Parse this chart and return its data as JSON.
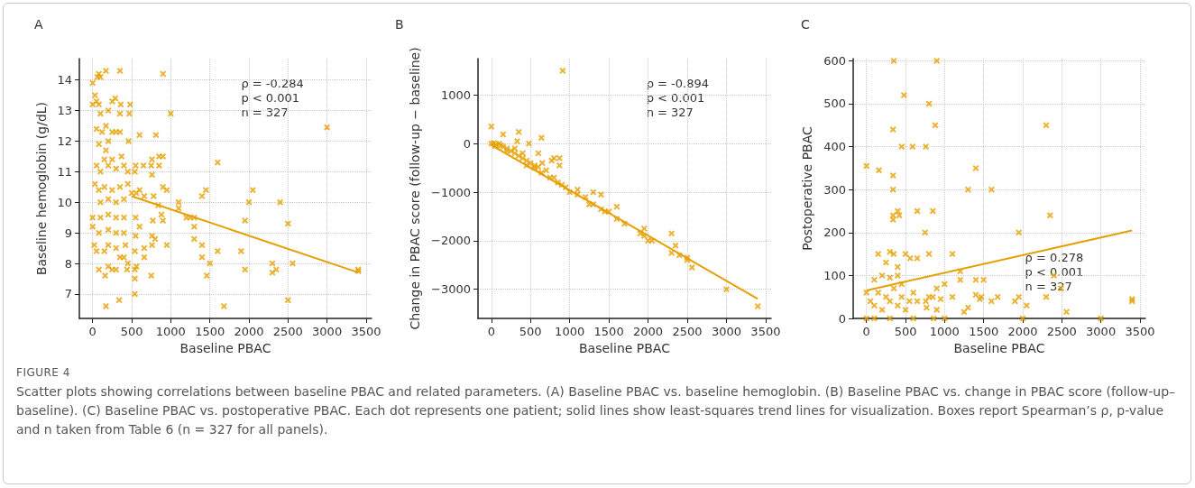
{
  "chart_data": [
    {
      "type": "scatter",
      "title": "A",
      "xlabel": "Baseline PBAC",
      "ylabel": "Baseline hemoglobin (g/dL)",
      "annotations": [
        "ρ = -0.284\np < 0.001\nn = 327",
        "FIGURE 4",
        "Scatter plots showing correlations between baseline PBAC and related parameters. (A) Baseline PBAC vs. baseline hemoglobin. (B) Baseline PBAC vs. change in PBAC score (follow-up–baseline). (C) Baseline PBAC vs. postoperative PBAC. Each dot represents one patient; solid lines show least-squares trend lines for visualization. Boxes report Spearman’s ρ, p-value and n taken from Table 6 (n = 327 for all panels)."
      ],
      "xlim": [
        -170,
        3570
      ],
      "xticks": [
        0,
        500,
        1000,
        1500,
        2000,
        2500,
        3000,
        3500
      ],
      "ylim": [
        6.2,
        14.7
      ],
      "yticks": [
        7,
        8,
        9,
        10,
        11,
        12,
        13,
        14
      ],
      "grid": true,
      "series": [
        {
          "color": "#e69f00",
          "marker": "cross",
          "x": [
            0,
            30,
            60,
            80,
            100,
            170,
            350,
            900,
            0,
            50,
            80,
            100,
            200,
            250,
            290,
            350,
            360,
            480,
            470,
            1000,
            50,
            120,
            170,
            200,
            250,
            300,
            350,
            460,
            80,
            600,
            810,
            170,
            150,
            250,
            370,
            850,
            900,
            760,
            1600,
            50,
            100,
            200,
            300,
            400,
            450,
            550,
            650,
            750,
            850,
            760,
            540,
            30,
            80,
            150,
            250,
            350,
            450,
            500,
            560,
            600,
            900,
            950,
            1450,
            2050,
            660,
            780,
            1400,
            100,
            200,
            300,
            400,
            840,
            1100,
            1100,
            2000,
            2400,
            0,
            100,
            200,
            300,
            400,
            550,
            880,
            900,
            1200,
            1250,
            1300,
            770,
            1950,
            2500,
            0,
            80,
            200,
            300,
            400,
            600,
            1300,
            20,
            50,
            200,
            300,
            420,
            550,
            760,
            800,
            950,
            1300,
            660,
            760,
            150,
            350,
            400,
            540,
            660,
            1400,
            1400,
            1600,
            1900,
            450,
            80,
            160,
            200,
            250,
            300,
            440,
            540,
            560,
            750,
            1500,
            1460,
            1950,
            2300,
            2300,
            2350,
            2560,
            3400,
            3400,
            540,
            540,
            340,
            2500,
            170,
            1680,
            3000
          ],
          "values": [
            13.9,
            13.5,
            14.1,
            14.2,
            14.1,
            14.3,
            14.3,
            14.2,
            13.2,
            13.3,
            13.2,
            12.9,
            13.0,
            13.3,
            13.4,
            12.9,
            13.2,
            13.2,
            12.9,
            12.9,
            12.4,
            12.3,
            12.5,
            12.0,
            12.3,
            12.3,
            12.3,
            12.0,
            11.9,
            12.2,
            12.2,
            11.7,
            11.4,
            11.4,
            11.5,
            11.5,
            11.5,
            11.4,
            11.3,
            11.2,
            11.0,
            11.2,
            11.1,
            11.2,
            11.0,
            11.2,
            11.2,
            11.2,
            11.2,
            10.9,
            11.0,
            10.6,
            10.4,
            10.5,
            10.4,
            10.5,
            10.6,
            10.3,
            10.3,
            10.4,
            10.5,
            10.4,
            10.4,
            10.4,
            10.2,
            10.2,
            10.2,
            10.0,
            10.1,
            10.0,
            10.1,
            9.9,
            10.0,
            9.8,
            10.0,
            10.0,
            9.5,
            9.5,
            9.6,
            9.5,
            9.5,
            9.5,
            9.6,
            9.4,
            9.5,
            9.5,
            9.5,
            9.4,
            9.4,
            9.3,
            9.2,
            9.0,
            9.1,
            9.0,
            9.0,
            9.2,
            9.2,
            8.6,
            8.4,
            8.6,
            8.5,
            8.6,
            8.9,
            8.9,
            8.8,
            8.6,
            8.8,
            8.5,
            8.6,
            8.4,
            8.2,
            8.2,
            8.4,
            8.2,
            8.6,
            8.2,
            8.4,
            8.4,
            8.0,
            7.8,
            7.6,
            7.9,
            7.8,
            7.8,
            7.8,
            7.8,
            7.9,
            7.6,
            8.0,
            7.6,
            7.8,
            8.0,
            7.7,
            7.8,
            8.0,
            7.8,
            7.75,
            7.5,
            7.0,
            6.8,
            6.8,
            6.6,
            6.6,
            12.45
          ]
        },
        {
          "type": "line",
          "marker": "none",
          "color": "#e69f00",
          "x": [
            500,
            3400
          ],
          "values": [
            10.2,
            7.7
          ]
        }
      ]
    },
    {
      "type": "scatter",
      "title": "B",
      "xlabel": "Baseline PBAC",
      "ylabel": "Change in PBAC score (follow-up − baseline)",
      "annotations": [
        "ρ = -0.894\np < 0.001\nn = 327"
      ],
      "xlim": [
        -170,
        3570
      ],
      "xticks": [
        0,
        500,
        1000,
        1500,
        2000,
        2500,
        3000,
        3500
      ],
      "ylim": [
        -3600,
        1750
      ],
      "yticks": [
        -3000,
        -2000,
        -1000,
        0,
        1000
      ],
      "grid": true,
      "series": [
        {
          "color": "#e69f00",
          "marker": "cross",
          "x": [
            0,
            150,
            350,
            640,
            910,
            0,
            30,
            60,
            100,
            120,
            150,
            200,
            250,
            300,
            330,
            350,
            400,
            450,
            480,
            500,
            550,
            600,
            600,
            640,
            650,
            700,
            750,
            770,
            800,
            850,
            870,
            870,
            900,
            950,
            1000,
            1100,
            1100,
            1200,
            1250,
            1300,
            1300,
            1400,
            1400,
            1450,
            1500,
            1600,
            1600,
            1700,
            1900,
            1950,
            1950,
            2000,
            2050,
            2300,
            2300,
            2350,
            2400,
            2500,
            2500,
            2560,
            3000,
            3400,
            50,
            200,
            400,
            300,
            450,
            550,
            800
          ],
          "values": [
            350,
            190,
            240,
            120,
            1500,
            0,
            10,
            -20,
            0,
            -40,
            -60,
            -100,
            -150,
            -200,
            50,
            -250,
            -300,
            -350,
            0,
            -400,
            -450,
            -480,
            -200,
            -600,
            -400,
            -550,
            -700,
            -350,
            -300,
            -800,
            -300,
            -450,
            -850,
            -900,
            -1000,
            -950,
            -1050,
            -1100,
            -1250,
            -1000,
            -1250,
            -1050,
            -1350,
            -1400,
            -1400,
            -1300,
            -1550,
            -1650,
            -1850,
            -1750,
            -1900,
            -2000,
            -2000,
            -1850,
            -2250,
            -2100,
            -2300,
            -2350,
            -2400,
            -2550,
            -3000,
            -3350,
            -50,
            -150,
            -200,
            -100,
            -450,
            -500,
            -700
          ]
        },
        {
          "type": "line",
          "marker": "none",
          "color": "#e69f00",
          "x": [
            0,
            3400
          ],
          "values": [
            -30,
            -3200
          ]
        }
      ]
    },
    {
      "type": "scatter",
      "title": "C",
      "xlabel": "Baseline PBAC",
      "ylabel": "Postoperative PBAC",
      "annotations": [
        "ρ = 0.278\np < 0.001\nn = 327"
      ],
      "xlim": [
        -170,
        3570
      ],
      "xticks": [
        0,
        500,
        1000,
        1500,
        2000,
        2500,
        3000,
        3500
      ],
      "ylim": [
        0,
        605
      ],
      "yticks": [
        0,
        100,
        200,
        300,
        400,
        500,
        600
      ],
      "grid": true,
      "series": [
        {
          "color": "#e69f00",
          "marker": "cross",
          "x": [
            0,
            160,
            350,
            900,
            480,
            800,
            880,
            2300,
            340,
            450,
            590,
            760,
            1400,
            340,
            340,
            1300,
            1600,
            400,
            650,
            850,
            340,
            420,
            2350,
            340,
            750,
            1950,
            150,
            300,
            350,
            500,
            560,
            650,
            800,
            1100,
            250,
            400,
            1200,
            100,
            200,
            300,
            400,
            450,
            1000,
            1200,
            1400,
            1500,
            0,
            50,
            100,
            150,
            200,
            250,
            300,
            350,
            400,
            450,
            500,
            550,
            600,
            650,
            760,
            770,
            800,
            850,
            900,
            900,
            950,
            1100,
            1250,
            1300,
            1400,
            1450,
            1470,
            1600,
            1680,
            1900,
            1950,
            2050,
            2300,
            2560,
            3400,
            3400,
            0,
            100,
            300,
            600,
            860,
            1000,
            2000,
            3000,
            2400,
            2490
          ],
          "values": [
            355,
            345,
            600,
            600,
            520,
            500,
            450,
            450,
            440,
            400,
            400,
            400,
            350,
            333,
            300,
            300,
            300,
            250,
            250,
            250,
            240,
            240,
            240,
            230,
            200,
            200,
            150,
            155,
            150,
            150,
            140,
            140,
            150,
            150,
            130,
            120,
            110,
            90,
            100,
            95,
            100,
            80,
            80,
            90,
            90,
            90,
            60,
            40,
            30,
            60,
            20,
            50,
            40,
            70,
            30,
            50,
            20,
            40,
            60,
            40,
            40,
            25,
            50,
            50,
            70,
            20,
            45,
            50,
            15,
            25,
            55,
            45,
            50,
            40,
            50,
            40,
            50,
            30,
            50,
            15,
            45,
            40,
            0,
            0,
            0,
            0,
            0,
            0,
            0,
            0,
            100,
            70
          ]
        },
        {
          "type": "line",
          "marker": "none",
          "color": "#e69f00",
          "x": [
            0,
            3400
          ],
          "values": [
            65,
            205
          ]
        }
      ]
    }
  ]
}
